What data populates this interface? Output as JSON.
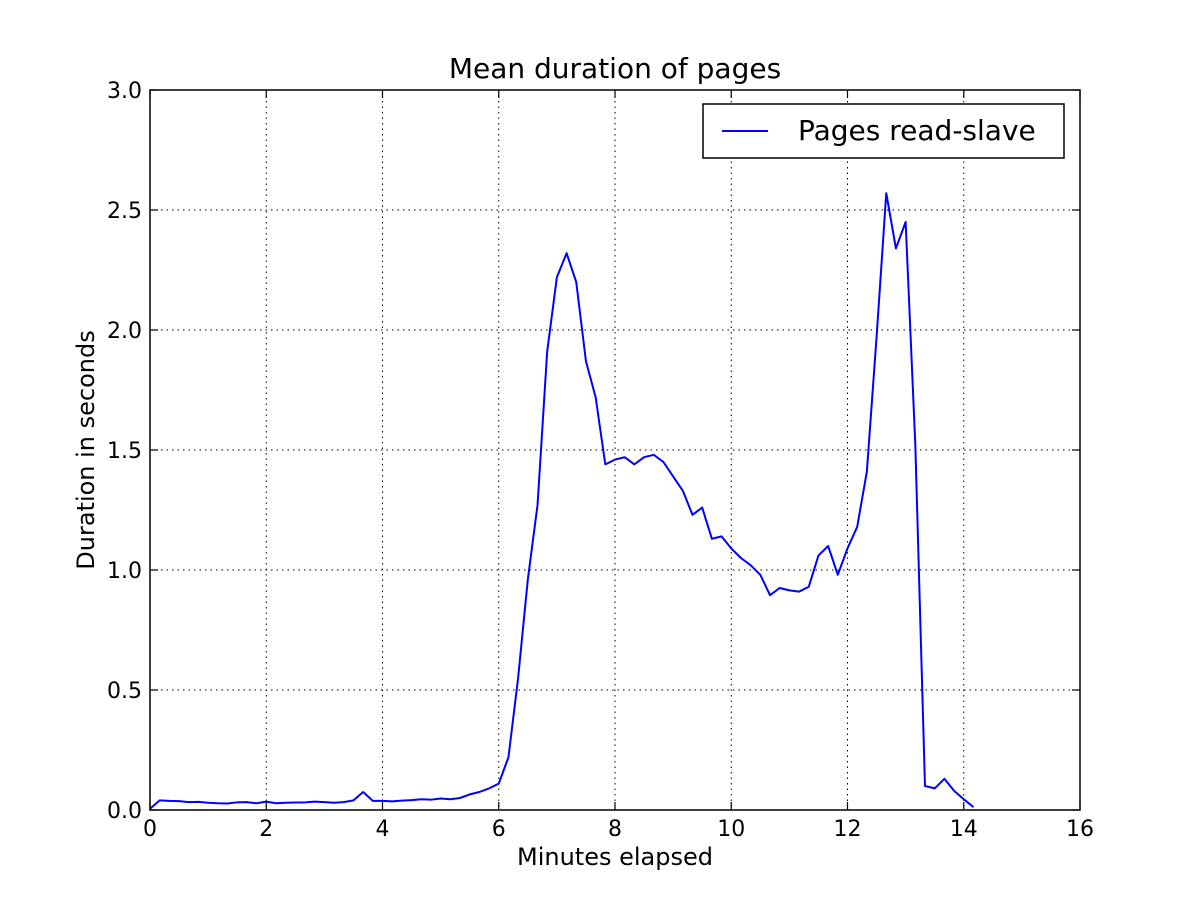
{
  "chart_data": {
    "type": "line",
    "title": "Mean duration of pages",
    "xlabel": "Minutes elapsed",
    "ylabel": "Duration in seconds",
    "xlim": [
      0,
      16
    ],
    "ylim": [
      0,
      3.0
    ],
    "xticks": [
      0,
      2,
      4,
      6,
      8,
      10,
      12,
      14,
      16
    ],
    "xtick_labels": [
      "0",
      "2",
      "4",
      "6",
      "8",
      "10",
      "12",
      "14",
      "16"
    ],
    "yticks": [
      0.0,
      0.5,
      1.0,
      1.5,
      2.0,
      2.5,
      3.0
    ],
    "ytick_labels": [
      "0.0",
      "0.5",
      "1.0",
      "1.5",
      "2.0",
      "2.5",
      "3.0"
    ],
    "grid": true,
    "legend_position": "top-right",
    "series": [
      {
        "name": "Pages read-slave",
        "color": "#0000ff",
        "x": [
          0,
          0.167,
          0.333,
          0.5,
          0.667,
          0.833,
          1.0,
          1.167,
          1.333,
          1.5,
          1.667,
          1.833,
          2.0,
          2.167,
          2.333,
          2.5,
          2.667,
          2.833,
          3.0,
          3.167,
          3.333,
          3.5,
          3.667,
          3.833,
          4.0,
          4.167,
          4.333,
          4.5,
          4.667,
          4.833,
          5.0,
          5.167,
          5.333,
          5.5,
          5.667,
          5.833,
          6.0,
          6.167,
          6.333,
          6.5,
          6.667,
          6.833,
          7.0,
          7.167,
          7.333,
          7.5,
          7.667,
          7.833,
          8.0,
          8.167,
          8.333,
          8.5,
          8.667,
          8.833,
          9.0,
          9.167,
          9.333,
          9.5,
          9.667,
          9.833,
          10.0,
          10.167,
          10.333,
          10.5,
          10.667,
          10.833,
          11.0,
          11.167,
          11.333,
          11.5,
          11.667,
          11.833,
          12.0,
          12.167,
          12.333,
          12.5,
          12.667,
          12.833,
          13.0,
          13.167,
          13.333,
          13.5,
          13.667,
          13.833,
          14.0,
          14.167
        ],
        "y": [
          0.005,
          0.04,
          0.038,
          0.037,
          0.033,
          0.034,
          0.03,
          0.028,
          0.027,
          0.032,
          0.033,
          0.028,
          0.035,
          0.028,
          0.03,
          0.031,
          0.032,
          0.035,
          0.033,
          0.03,
          0.033,
          0.04,
          0.075,
          0.038,
          0.038,
          0.036,
          0.039,
          0.041,
          0.045,
          0.043,
          0.048,
          0.045,
          0.05,
          0.065,
          0.075,
          0.09,
          0.11,
          0.22,
          0.55,
          0.96,
          1.27,
          1.91,
          2.22,
          2.32,
          2.2,
          1.87,
          1.72,
          1.44,
          1.46,
          1.47,
          1.44,
          1.47,
          1.48,
          1.45,
          1.39,
          1.33,
          1.23,
          1.26,
          1.13,
          1.14,
          1.09,
          1.05,
          1.02,
          0.98,
          0.895,
          0.925,
          0.915,
          0.91,
          0.93,
          1.06,
          1.1,
          0.98,
          1.09,
          1.18,
          1.41,
          1.97,
          2.57,
          2.34,
          2.45,
          1.52,
          0.1,
          0.09,
          0.13,
          0.08,
          0.045,
          0.012
        ]
      }
    ]
  }
}
